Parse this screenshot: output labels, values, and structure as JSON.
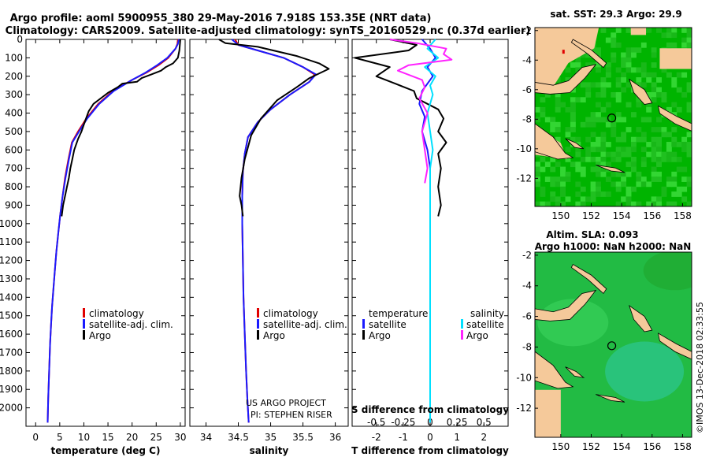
{
  "header": {
    "line1": "Argo profile: aoml 5900955_380 29-May-2016 7.918S 153.35E (NRT data)",
    "line2": "Climatology: CARS2009. Satellite-adjusted climatology: synTS_20160529.nc (0.37d earlier)"
  },
  "colors": {
    "climatology": "#e00000",
    "satellite_adj": "#1a1aff",
    "argo": "#000000",
    "sat_salinity": "#00e0ff",
    "argo_salinity": "#ff22ff",
    "land": "#f5c99a",
    "ocean_high": "#1ec81e",
    "ocean_mid": "#00b400",
    "sla_ocean": "#22bb44"
  },
  "chart_data": [
    {
      "type": "line",
      "title": "",
      "xlabel": "temperature (deg C)",
      "ylabel": "",
      "xlim": [
        -2,
        31
      ],
      "ylim": [
        2100,
        0
      ],
      "xticks": [
        "0",
        "5",
        "10",
        "15",
        "20",
        "25",
        "30"
      ],
      "xtick_values": [
        0,
        5,
        10,
        15,
        20,
        25,
        30
      ],
      "yticks": [
        "0",
        "100",
        "200",
        "300",
        "400",
        "500",
        "600",
        "700",
        "800",
        "900",
        "1000",
        "1100",
        "1200",
        "1300",
        "1400",
        "1500",
        "1600",
        "1700",
        "1800",
        "1900",
        "2000"
      ],
      "ytick_values": [
        0,
        100,
        200,
        300,
        400,
        500,
        600,
        700,
        800,
        900,
        1000,
        1100,
        1200,
        1300,
        1400,
        1500,
        1600,
        1700,
        1800,
        1900,
        2000
      ],
      "legend": [
        "climatology",
        "satellite-adj. clim.",
        "Argo"
      ],
      "series": [
        {
          "name": "climatology",
          "color": "#e00000",
          "x": [
            29.5,
            29.4,
            29.0,
            27.5,
            25.5,
            23.0,
            20.0,
            16.0,
            13.0,
            10.5,
            8.8,
            7.5,
            6.8,
            6.1,
            5.6,
            5.1,
            4.7,
            4.3,
            4.0,
            3.7,
            3.4,
            3.2,
            3.0,
            2.8,
            2.6,
            2.5
          ],
          "y": [
            0,
            25,
            50,
            100,
            140,
            180,
            220,
            280,
            350,
            430,
            500,
            560,
            650,
            750,
            850,
            950,
            1050,
            1150,
            1250,
            1350,
            1450,
            1550,
            1650,
            1800,
            1950,
            2080
          ]
        },
        {
          "name": "satellite-adj. clim.",
          "color": "#1a1aff",
          "x": [
            29.7,
            29.5,
            29.0,
            27.3,
            25.2,
            22.8,
            20.0,
            16.2,
            13.2,
            10.7,
            9.0,
            7.6,
            6.9,
            6.2,
            5.6,
            5.1,
            4.7,
            4.3,
            4.0,
            3.7,
            3.4,
            3.2,
            3.0,
            2.8,
            2.6,
            2.5
          ],
          "y": [
            0,
            25,
            50,
            100,
            140,
            180,
            220,
            280,
            350,
            430,
            500,
            560,
            650,
            750,
            850,
            950,
            1050,
            1150,
            1250,
            1350,
            1450,
            1550,
            1650,
            1800,
            1950,
            2080
          ]
        },
        {
          "name": "Argo",
          "color": "#000000",
          "x": [
            30.0,
            29.9,
            29.8,
            29.5,
            28.5,
            27.0,
            26.0,
            24.0,
            22.0,
            21.0,
            18.0,
            17.0,
            15.0,
            14.0,
            12.0,
            11.0,
            10.3,
            9.5,
            8.8,
            8.0,
            7.6,
            7.2,
            6.9,
            6.5,
            6.1,
            5.7,
            5.4
          ],
          "y": [
            0,
            30,
            60,
            100,
            130,
            150,
            170,
            190,
            210,
            230,
            240,
            260,
            290,
            310,
            350,
            390,
            440,
            500,
            540,
            600,
            650,
            700,
            750,
            800,
            850,
            900,
            960
          ]
        }
      ]
    },
    {
      "type": "line",
      "title": "",
      "xlabel": "salinity",
      "ylabel": "",
      "xlim": [
        33.75,
        36.2
      ],
      "ylim": [
        2100,
        0
      ],
      "xticks": [
        "34",
        "34.5",
        "35",
        "35.5",
        "36"
      ],
      "xtick_values": [
        34,
        34.5,
        35,
        35.5,
        36
      ],
      "legend": [
        "climatology",
        "satellite-adj. clim.",
        "Argo"
      ],
      "credit_line1": "US ARGO PROJECT",
      "credit_line2": "PI: STEPHEN RISER",
      "series": [
        {
          "name": "climatology",
          "color": "#e00000",
          "x": [
            34.45,
            34.5,
            34.8,
            35.2,
            35.5,
            35.68,
            35.6,
            35.3,
            35.0,
            34.8,
            34.65,
            34.6,
            34.57,
            34.56,
            34.56,
            34.57,
            34.58,
            34.6,
            34.62,
            34.64,
            34.66
          ],
          "y": [
            0,
            30,
            60,
            100,
            150,
            190,
            230,
            300,
            380,
            450,
            530,
            620,
            720,
            850,
            1000,
            1200,
            1400,
            1600,
            1800,
            1950,
            2080
          ]
        },
        {
          "name": "satellite-adj. clim.",
          "color": "#1a1aff",
          "x": [
            34.4,
            34.5,
            34.8,
            35.2,
            35.5,
            35.7,
            35.6,
            35.3,
            35.0,
            34.8,
            34.65,
            34.6,
            34.57,
            34.56,
            34.56,
            34.57,
            34.58,
            34.6,
            34.62,
            34.64,
            34.66
          ],
          "y": [
            0,
            30,
            60,
            100,
            150,
            190,
            230,
            300,
            380,
            450,
            530,
            620,
            720,
            850,
            1000,
            1200,
            1400,
            1600,
            1800,
            1950,
            2080
          ]
        },
        {
          "name": "Argo",
          "color": "#000000",
          "x": [
            34.2,
            34.3,
            34.8,
            35.4,
            35.75,
            35.9,
            35.6,
            35.4,
            35.1,
            34.85,
            34.7,
            34.6,
            34.55,
            34.52,
            34.55,
            34.57
          ],
          "y": [
            0,
            20,
            40,
            90,
            130,
            160,
            210,
            260,
            330,
            430,
            520,
            650,
            750,
            850,
            900,
            960
          ]
        }
      ]
    },
    {
      "type": "line",
      "title": "",
      "xlabel": "T difference from climatology",
      "ylabel": "",
      "xlim": [
        -2.9,
        2.9
      ],
      "ylim": [
        2100,
        0
      ],
      "xticks": [
        "-2",
        "-1",
        "0",
        "1",
        "2"
      ],
      "xtick_values": [
        -2,
        -1,
        0,
        1,
        2
      ],
      "top_axis_title": "S difference from climatology",
      "top_axis_ticks": [
        "-0.5",
        "-0.25",
        "0",
        "0.25",
        "0.5"
      ],
      "top_axis_values": [
        -0.5,
        -0.25,
        0,
        0.25,
        0.5
      ],
      "legend_left": [
        "temperature",
        "satellite",
        "Argo"
      ],
      "legend_right": [
        "salinity",
        "satellite",
        "Argo"
      ],
      "series": [
        {
          "name": "T satellite",
          "color": "#1a1aff",
          "x": [
            -0.3,
            0.0,
            0.2,
            -0.1,
            0.1,
            -0.3,
            -0.4,
            -0.2,
            -0.3,
            -0.1,
            0.0,
            0.0,
            0.0,
            0.0,
            0.0,
            0.0,
            0.0
          ],
          "y": [
            0,
            50,
            100,
            150,
            200,
            280,
            350,
            420,
            500,
            600,
            700,
            800,
            1000,
            1200,
            1500,
            1800,
            2080
          ]
        },
        {
          "name": "T Argo",
          "color": "#000000",
          "x": [
            -1.5,
            -0.5,
            -0.8,
            -2.8,
            -1.5,
            -2.0,
            -1.3,
            -0.6,
            -0.5,
            0.3,
            0.5,
            0.3,
            0.6,
            0.3,
            0.4,
            0.3,
            0.4,
            0.3
          ],
          "y": [
            0,
            30,
            60,
            100,
            150,
            200,
            240,
            280,
            320,
            380,
            430,
            500,
            560,
            620,
            700,
            800,
            900,
            960
          ]
        },
        {
          "name": "S satellite",
          "color": "#00e0ff",
          "x": [
            0.2,
            -0.1,
            0.3,
            -0.2,
            0.2,
            0.0,
            0.1,
            -0.1,
            0.0,
            0.1,
            0.0,
            0.0,
            0.0,
            0.0
          ],
          "y": [
            0,
            50,
            100,
            150,
            200,
            250,
            300,
            400,
            500,
            600,
            700,
            1000,
            1500,
            2080
          ]
        },
        {
          "name": "S Argo",
          "color": "#ff22ff",
          "x": [
            -1.5,
            -0.5,
            0.6,
            0.5,
            0.8,
            -0.8,
            -1.2,
            -0.3,
            -0.2,
            -0.4,
            -0.1,
            -0.3,
            -0.2,
            -0.1,
            -0.2
          ],
          "y": [
            0,
            20,
            50,
            80,
            110,
            140,
            170,
            220,
            260,
            320,
            400,
            500,
            600,
            700,
            780
          ]
        }
      ]
    }
  ],
  "maps": {
    "sst": {
      "title": "sat. SST: 29.3 Argo: 29.9",
      "xticks": [
        "150",
        "152",
        "154",
        "156",
        "158"
      ],
      "yticks": [
        "-2",
        "-4",
        "-6",
        "-8",
        "-10",
        "-12"
      ],
      "lon_range": [
        148.3,
        158.6
      ],
      "lat_range": [
        -13.9,
        -1.8
      ],
      "argo_lon": 153.35,
      "argo_lat": -7.918
    },
    "sla": {
      "title_line1": "Altim. SLA: 0.093",
      "title_line2": "Argo h1000: NaN h2000: NaN",
      "xticks": [
        "150",
        "152",
        "154",
        "156",
        "158"
      ],
      "yticks": [
        "-2",
        "-4",
        "-6",
        "-8",
        "-10",
        "-12"
      ],
      "lon_range": [
        148.3,
        158.6
      ],
      "lat_range": [
        -13.9,
        -1.8
      ],
      "argo_lon": 153.35,
      "argo_lat": -7.918
    }
  },
  "footer_credit": "©IMOS 13-Dec-2018 02:33:55"
}
